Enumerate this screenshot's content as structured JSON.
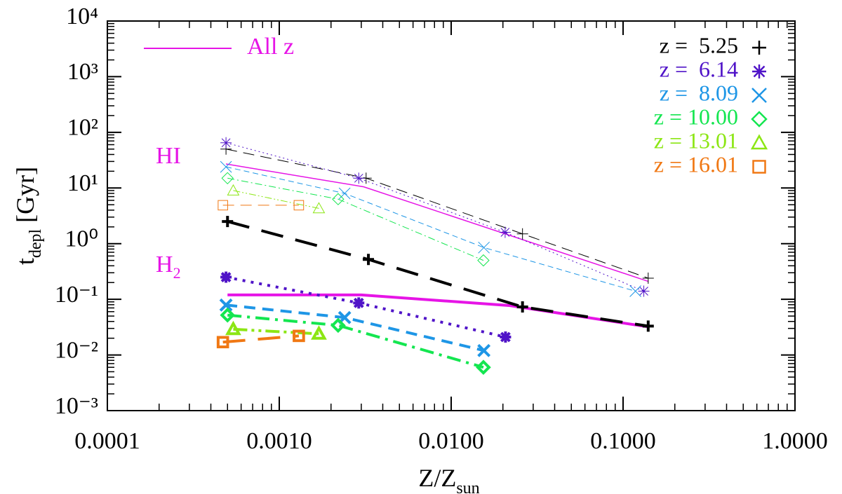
{
  "chart_data": {
    "type": "line",
    "log_x": true,
    "log_y": true,
    "x_label": {
      "text": "Z/Z",
      "subscript": "sun"
    },
    "y_label": {
      "text": "t",
      "subscript": "depl",
      "suffix": " [Gyr]"
    },
    "xlim": [
      0.0001,
      1
    ],
    "xticks": [
      {
        "value": 0.0001,
        "label": "0.0001"
      },
      {
        "value": 0.001,
        "label": "0.0010"
      },
      {
        "value": 0.01,
        "label": "0.0100"
      },
      {
        "value": 0.1,
        "label": "0.1000"
      },
      {
        "value": 1,
        "label": "1.0000"
      }
    ],
    "ylim": [
      0.001,
      10000
    ],
    "yticks": [
      {
        "value": 0.001,
        "label": "10⁻³"
      },
      {
        "value": 0.01,
        "label": "10⁻²"
      },
      {
        "value": 0.1,
        "label": "10⁻¹"
      },
      {
        "value": 1,
        "label": "10⁰"
      },
      {
        "value": 10,
        "label": "10¹"
      },
      {
        "value": 100,
        "label": "10²"
      },
      {
        "value": 1000,
        "label": "10³"
      },
      {
        "value": 10000,
        "label": "10⁴"
      }
    ],
    "annotations": {
      "hi": {
        "text": "HI"
      },
      "h2": {
        "text": "H",
        "subscript": "2"
      }
    },
    "legend_loc": "upper right",
    "series": [
      {
        "name": "z =  5.25",
        "color": "#000000",
        "marker": "plus",
        "linestyle": "longdash",
        "x": [
          0.00049,
          0.0032,
          0.026,
          0.14
        ],
        "values": [
          50,
          15,
          1.5,
          0.24
        ],
        "h2_x": [
          0.0005,
          0.0033,
          0.026,
          0.14
        ],
        "h2_values": [
          2.5,
          0.52,
          0.073,
          0.033
        ]
      },
      {
        "name": "z =  6.14",
        "color": "#5014c8",
        "marker": "asterisk",
        "linestyle": "dotted",
        "x": [
          0.00049,
          0.0029,
          0.0206,
          0.132
        ],
        "values": [
          65,
          15,
          1.6,
          0.14
        ],
        "h2_x": [
          0.00049,
          0.0029,
          0.0207
        ],
        "h2_values": [
          0.25,
          0.086,
          0.021
        ]
      },
      {
        "name": "z =  8.09",
        "color": "#1e96e6",
        "marker": "x",
        "linestyle": "dashed",
        "x": [
          0.00049,
          0.0024,
          0.0155,
          0.118
        ],
        "values": [
          24,
          8,
          0.85,
          0.14
        ],
        "h2_x": [
          0.00049,
          0.0024,
          0.0155
        ],
        "h2_values": [
          0.079,
          0.047,
          0.012
        ]
      },
      {
        "name": "z = 10.00",
        "color": "#14e650",
        "marker": "diamond",
        "linestyle": "dashdot",
        "x": [
          0.0005,
          0.0022,
          0.0154
        ],
        "values": [
          15,
          6.3,
          0.5
        ],
        "h2_x": [
          0.0005,
          0.0022,
          0.0154
        ],
        "h2_values": [
          0.052,
          0.034,
          0.006
        ]
      },
      {
        "name": "z = 13.01",
        "color": "#8ce614",
        "marker": "triangle",
        "linestyle": "dashdotdot",
        "x": [
          0.00054,
          0.0017
        ],
        "values": [
          9,
          4.3
        ],
        "h2_x": [
          0.00054,
          0.0017
        ],
        "h2_values": [
          0.029,
          0.024
        ]
      },
      {
        "name": "z = 16.01",
        "color": "#f07814",
        "marker": "square",
        "linestyle": "longdash",
        "x": [
          0.00047,
          0.0013
        ],
        "values": [
          4.9,
          4.9
        ],
        "h2_x": [
          0.00047,
          0.0013
        ],
        "h2_values": [
          0.017,
          0.022
        ]
      }
    ],
    "all_z": {
      "name": "All z",
      "color": "#e614e6",
      "x": [
        0.00049,
        0.0031,
        0.14
      ],
      "values": [
        27,
        10.5,
        0.21
      ],
      "h2_x": [
        0.0005,
        0.003,
        0.022,
        0.14
      ],
      "h2_values": [
        0.12,
        0.12,
        0.077,
        0.032
      ]
    }
  }
}
